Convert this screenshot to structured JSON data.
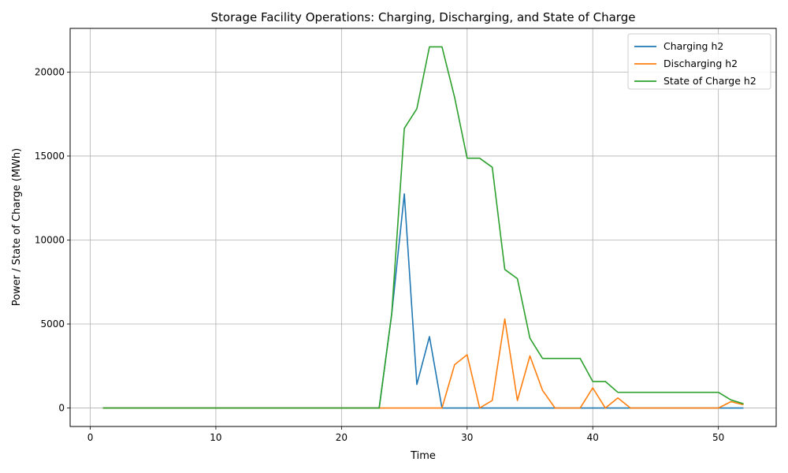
{
  "chart_data": {
    "type": "line",
    "title": "Storage Facility Operations: Charging, Discharging, and State of Charge",
    "xlabel": "Time",
    "ylabel": "Power / State of Charge (MWh)",
    "xlim": [
      -1.6,
      54.6
    ],
    "ylim": [
      -1100,
      22600
    ],
    "xticks": [
      0,
      10,
      20,
      30,
      40,
      50
    ],
    "yticks": [
      0,
      5000,
      10000,
      15000,
      20000
    ],
    "grid": true,
    "legend_position": "top-right",
    "x": [
      1,
      2,
      3,
      4,
      5,
      6,
      7,
      8,
      9,
      10,
      11,
      12,
      13,
      14,
      15,
      16,
      17,
      18,
      19,
      20,
      21,
      22,
      23,
      24,
      25,
      26,
      27,
      28,
      29,
      30,
      31,
      32,
      33,
      34,
      35,
      36,
      37,
      38,
      39,
      40,
      41,
      42,
      43,
      44,
      45,
      46,
      47,
      48,
      49,
      50,
      51,
      52
    ],
    "series": [
      {
        "name": "Charging h2",
        "color": "#1f77b4",
        "values": [
          0,
          0,
          0,
          0,
          0,
          0,
          0,
          0,
          0,
          0,
          0,
          0,
          0,
          0,
          0,
          0,
          0,
          0,
          0,
          0,
          0,
          0,
          0,
          5600,
          12750,
          1400,
          4250,
          0,
          0,
          0,
          0,
          0,
          0,
          0,
          0,
          0,
          0,
          0,
          0,
          0,
          0,
          0,
          0,
          0,
          0,
          0,
          0,
          0,
          0,
          0,
          0,
          0
        ]
      },
      {
        "name": "Discharging h2",
        "color": "#ff7f0e",
        "values": [
          0,
          0,
          0,
          0,
          0,
          0,
          0,
          0,
          0,
          0,
          0,
          0,
          0,
          0,
          0,
          0,
          0,
          0,
          0,
          0,
          0,
          0,
          0,
          0,
          0,
          0,
          0,
          0,
          2580,
          3170,
          0,
          450,
          5300,
          450,
          3100,
          1050,
          0,
          0,
          0,
          1200,
          0,
          600,
          0,
          0,
          0,
          0,
          0,
          0,
          0,
          0,
          380,
          190
        ]
      },
      {
        "name": "State of Charge h2",
        "color": "#2ca02c",
        "values": [
          0,
          0,
          0,
          0,
          0,
          0,
          0,
          0,
          0,
          0,
          0,
          0,
          0,
          0,
          0,
          0,
          0,
          0,
          0,
          0,
          0,
          0,
          0,
          5600,
          16650,
          17820,
          21500,
          21500,
          18500,
          14870,
          14870,
          14330,
          8250,
          7700,
          4150,
          2950,
          2950,
          2950,
          2950,
          1580,
          1580,
          930,
          930,
          930,
          930,
          930,
          930,
          930,
          930,
          930,
          480,
          250
        ]
      }
    ]
  }
}
